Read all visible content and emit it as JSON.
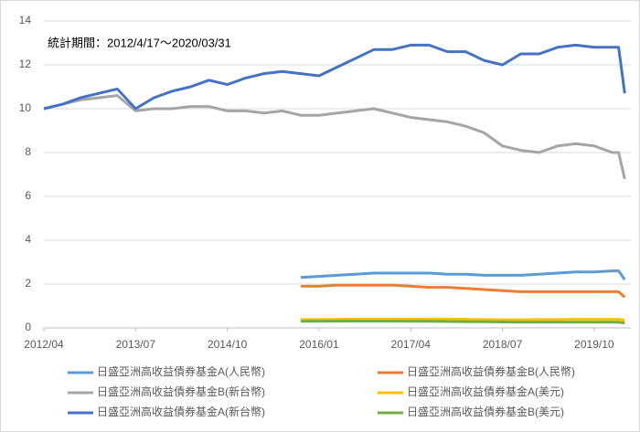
{
  "chart_data": {
    "type": "line",
    "annotation": "統計期間：2012/4/17～2020/03/31",
    "x": [
      "2012/04",
      "2012/07",
      "2012/10",
      "2013/01",
      "2013/04",
      "2013/07",
      "2013/10",
      "2014/01",
      "2014/04",
      "2014/07",
      "2014/10",
      "2015/01",
      "2015/04",
      "2015/07",
      "2015/10",
      "2016/01",
      "2016/04",
      "2016/07",
      "2016/10",
      "2017/01",
      "2017/04",
      "2017/07",
      "2017/10",
      "2018/01",
      "2018/04",
      "2018/07",
      "2018/10",
      "2019/01",
      "2019/04",
      "2019/07",
      "2019/10",
      "2020/01",
      "2020/02",
      "2020/03"
    ],
    "xlim": [
      "2012/04",
      "2020/04"
    ],
    "xticks": [
      "2012/04",
      "2013/07",
      "2014/10",
      "2016/01",
      "2017/04",
      "2018/07",
      "2019/10"
    ],
    "ylim": [
      0,
      14
    ],
    "yticks": [
      0,
      2,
      4,
      6,
      8,
      10,
      12,
      14
    ],
    "grid": true,
    "series": [
      {
        "name": "日盛亞洲高收益債券基金A(人民幣)",
        "color": "#5b9bd5",
        "values": [
          null,
          null,
          null,
          null,
          null,
          null,
          null,
          null,
          null,
          null,
          null,
          null,
          null,
          null,
          2.3,
          2.35,
          2.4,
          2.45,
          2.5,
          2.5,
          2.5,
          2.5,
          2.45,
          2.45,
          2.4,
          2.4,
          2.4,
          2.45,
          2.5,
          2.55,
          2.55,
          2.6,
          2.6,
          2.2
        ]
      },
      {
        "name": "日盛亞洲高收益債券基金B(人民幣)",
        "color": "#ed7d31",
        "values": [
          null,
          null,
          null,
          null,
          null,
          null,
          null,
          null,
          null,
          null,
          null,
          null,
          null,
          null,
          1.9,
          1.9,
          1.95,
          1.95,
          1.95,
          1.95,
          1.9,
          1.85,
          1.85,
          1.8,
          1.75,
          1.7,
          1.65,
          1.65,
          1.65,
          1.65,
          1.65,
          1.65,
          1.65,
          1.4
        ]
      },
      {
        "name": "日盛亞洲高收益債券基金B(新台幣)",
        "color": "#a5a5a5",
        "values": [
          10.0,
          10.2,
          10.4,
          10.5,
          10.6,
          9.9,
          10.0,
          10.0,
          10.1,
          10.1,
          9.9,
          9.9,
          9.8,
          9.9,
          9.7,
          9.7,
          9.8,
          9.9,
          10.0,
          9.8,
          9.6,
          9.5,
          9.4,
          9.2,
          8.9,
          8.3,
          8.1,
          8.0,
          8.3,
          8.4,
          8.3,
          8.0,
          8.0,
          6.8
        ]
      },
      {
        "name": "日盛亞洲高收益債券基金A(美元)",
        "color": "#ffc000",
        "values": [
          null,
          null,
          null,
          null,
          null,
          null,
          null,
          null,
          null,
          null,
          null,
          null,
          null,
          null,
          0.38,
          0.38,
          0.39,
          0.4,
          0.4,
          0.4,
          0.4,
          0.4,
          0.4,
          0.39,
          0.38,
          0.37,
          0.37,
          0.38,
          0.38,
          0.39,
          0.39,
          0.39,
          0.39,
          0.35
        ]
      },
      {
        "name": "日盛亞洲高收益債券基金A(新台幣)",
        "color": "#4472c4",
        "values": [
          10.0,
          10.2,
          10.5,
          10.7,
          10.9,
          10.0,
          10.5,
          10.8,
          11.0,
          11.3,
          11.1,
          11.4,
          11.6,
          11.7,
          11.6,
          11.5,
          11.9,
          12.3,
          12.7,
          12.7,
          12.9,
          12.9,
          12.6,
          12.6,
          12.2,
          12.0,
          12.5,
          12.5,
          12.8,
          12.9,
          12.8,
          12.8,
          12.8,
          10.7
        ]
      },
      {
        "name": "日盛亞洲高收益債券基金B(美元)",
        "color": "#70ad47",
        "values": [
          null,
          null,
          null,
          null,
          null,
          null,
          null,
          null,
          null,
          null,
          null,
          null,
          null,
          null,
          0.3,
          0.3,
          0.31,
          0.31,
          0.31,
          0.31,
          0.3,
          0.3,
          0.29,
          0.28,
          0.28,
          0.27,
          0.26,
          0.26,
          0.26,
          0.26,
          0.26,
          0.26,
          0.26,
          0.22
        ]
      }
    ]
  }
}
